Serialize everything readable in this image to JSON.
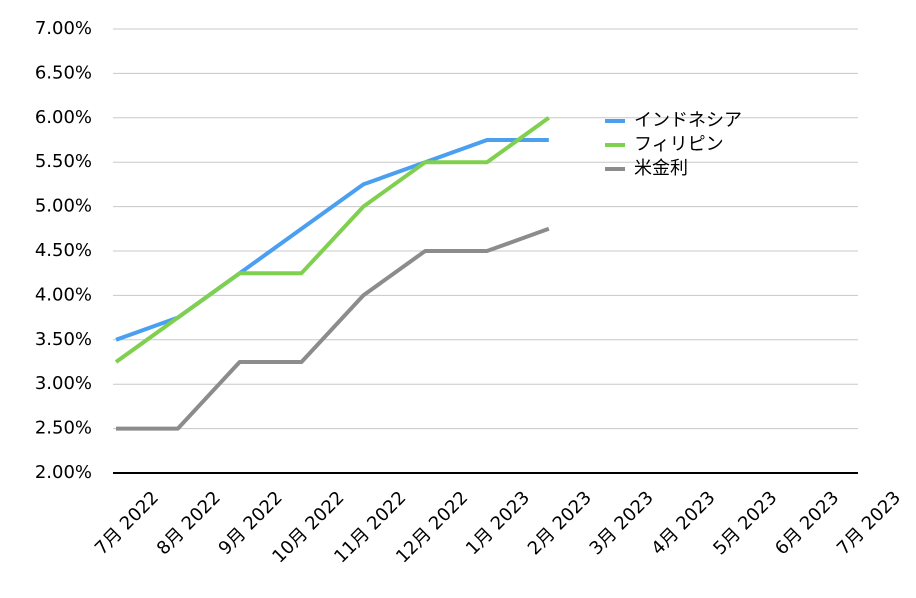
{
  "chart_data": {
    "type": "line",
    "categories": [
      "7月 2022",
      "8月 2022",
      "9月 2022",
      "10月 2022",
      "11月 2022",
      "12月 2022",
      "1月 2023",
      "2月 2023",
      "3月 2023",
      "4月 2023",
      "5月 2023",
      "6月 2023",
      "7月 2023"
    ],
    "series": [
      {
        "name": "インドネシア",
        "color": "#4a9ff0",
        "values": [
          3.5,
          3.75,
          4.25,
          4.75,
          5.25,
          5.5,
          5.75,
          5.75,
          null,
          null,
          null,
          null,
          null
        ]
      },
      {
        "name": "フィリピン",
        "color": "#80d04f",
        "values": [
          3.25,
          3.75,
          4.25,
          4.25,
          5.0,
          5.5,
          5.5,
          6.0,
          null,
          null,
          null,
          null,
          null
        ]
      },
      {
        "name": "米金利",
        "color": "#8c8c8c",
        "values": [
          2.5,
          2.5,
          3.25,
          3.25,
          4.0,
          4.5,
          4.5,
          4.75,
          null,
          null,
          null,
          null,
          null
        ]
      }
    ],
    "ylim": [
      2,
      7
    ],
    "yticks": [
      {
        "value": 2,
        "label": "2.00%"
      },
      {
        "value": 2.5,
        "label": "2.50%"
      },
      {
        "value": 3,
        "label": "3.00%"
      },
      {
        "value": 3.5,
        "label": "3.50%"
      },
      {
        "value": 4,
        "label": "4.00%"
      },
      {
        "value": 4.5,
        "label": "4.50%"
      },
      {
        "value": 5,
        "label": "5.00%"
      },
      {
        "value": 5.5,
        "label": "5.50%"
      },
      {
        "value": 6,
        "label": "6.00%"
      },
      {
        "value": 6.5,
        "label": "6.50%"
      },
      {
        "value": 7,
        "label": "7.00%"
      }
    ],
    "grid": true,
    "legend": "right"
  }
}
